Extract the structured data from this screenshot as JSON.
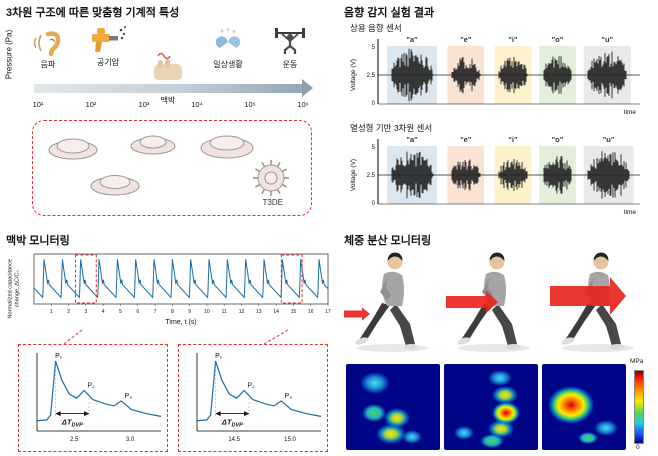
{
  "panels": {
    "mech": {
      "title": "3차원 구조에 따른 맞춤형 기계적 특성",
      "pressure_label": "Pressure (Pa)",
      "ticks": [
        "10¹",
        "10²",
        "10³",
        "10⁴",
        "10⁵",
        "10⁶"
      ],
      "icon_labels": [
        "음파",
        "공기압",
        "맥박",
        "일상생활",
        "운동"
      ],
      "device_label": "T3DE"
    },
    "acoustic": {
      "title": "음향 감지 실험 결과",
      "band_colors": [
        "#dce6ee",
        "#fbe3d4",
        "#fdf2cb",
        "#e3efdb",
        "#e9e9e9"
      ]
    },
    "pulse": {
      "title": "맥박 모니터링",
      "ylabel_line1": "Normalized capacitance",
      "ylabel_line2": "change, ΔC/C₀"
    },
    "weight": {
      "title": "체중 분산 모니터링",
      "colorbar_top": "MPa",
      "colorbar_bottom": "0"
    }
  },
  "chart_data": [
    {
      "id": "acoustic_commercial",
      "type": "line",
      "title": "상용 음향 센서",
      "ylabel": "Voltage (V)",
      "xlabel": "time",
      "ylim": [
        0,
        5
      ],
      "yticks": [
        "5",
        "2.5",
        "0"
      ],
      "baseline_v": 2.5,
      "vowels": [
        "\"a\"",
        "\"e\"",
        "\"i\"",
        "\"o\"",
        "\"u\""
      ],
      "bursts": [
        {
          "start": 0.05,
          "end": 0.21,
          "amp": 1.0
        },
        {
          "start": 0.28,
          "end": 0.39,
          "amp": 0.72
        },
        {
          "start": 0.46,
          "end": 0.57,
          "amp": 0.66
        },
        {
          "start": 0.63,
          "end": 0.74,
          "amp": 0.78
        },
        {
          "start": 0.8,
          "end": 0.95,
          "amp": 0.88
        }
      ],
      "seed": 11
    },
    {
      "id": "acoustic_3d",
      "type": "line",
      "title": "열성형 기반 3차원 센서",
      "ylabel": "Voltage (V)",
      "xlabel": "time",
      "ylim": [
        0,
        5
      ],
      "yticks": [
        "5",
        "2.5",
        "0"
      ],
      "baseline_v": 2.5,
      "vowels": [
        "\"a\"",
        "\"e\"",
        "\"i\"",
        "\"o\"",
        "\"u\""
      ],
      "bursts": [
        {
          "start": 0.05,
          "end": 0.21,
          "amp": 0.92
        },
        {
          "start": 0.28,
          "end": 0.39,
          "amp": 0.62
        },
        {
          "start": 0.46,
          "end": 0.57,
          "amp": 0.64
        },
        {
          "start": 0.63,
          "end": 0.74,
          "amp": 0.72
        },
        {
          "start": 0.8,
          "end": 0.96,
          "amp": 0.96
        }
      ],
      "seed": 23
    },
    {
      "id": "pulse_monitoring",
      "type": "line",
      "ylabel": "Normalized capacitance change, ΔC/C₀",
      "xlabel": "Time, t (s)",
      "xlim": [
        0,
        17
      ],
      "xticks": [
        "1",
        "2",
        "3",
        "4",
        "5",
        "6",
        "7",
        "8",
        "9",
        "10",
        "11",
        "12",
        "13",
        "14",
        "15",
        "16",
        "17"
      ],
      "beat_period": 1.06,
      "beat_count": 16,
      "zoom_windows": [
        [
          2.4,
          3.6
        ],
        [
          14.3,
          15.5
        ]
      ]
    },
    {
      "id": "pulse_zoom_1",
      "type": "line",
      "peaks": [
        "P₁",
        "P₂",
        "P₃"
      ],
      "delta_main": "ΔT",
      "delta_sub": "DVP",
      "xticks": [
        "2.5",
        "3.0"
      ]
    },
    {
      "id": "pulse_zoom_2",
      "type": "line",
      "peaks": [
        "P₁",
        "P₂",
        "P₃"
      ],
      "delta_main": "ΔT",
      "delta_sub": "DVP",
      "xticks": [
        "14.5",
        "15.0"
      ]
    }
  ]
}
